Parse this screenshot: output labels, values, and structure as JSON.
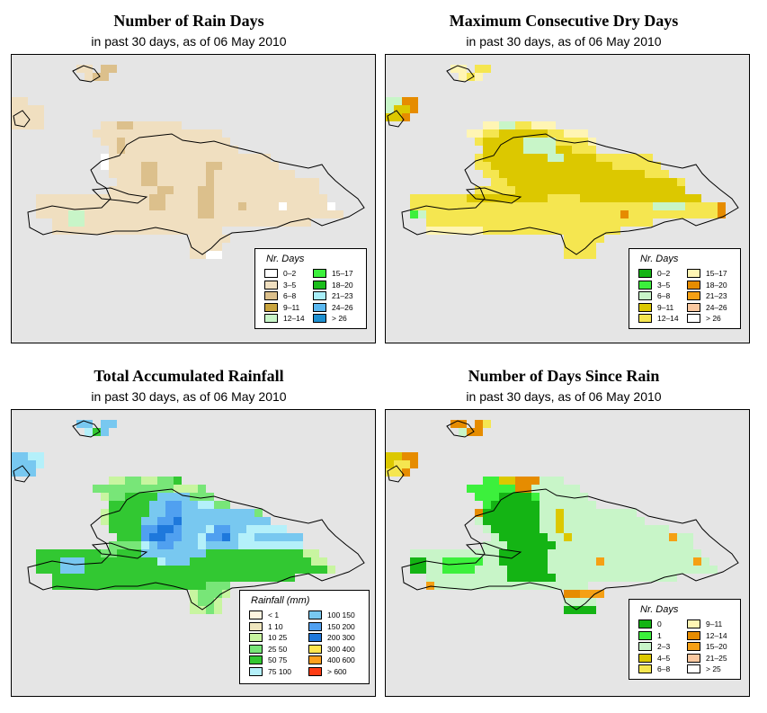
{
  "panels": [
    {
      "id": "rain-days",
      "title": "Number of Rain Days",
      "subtitle": "in past 30 days, as of  06 May 2010",
      "legend_title": "Nr. Days",
      "legend": [
        {
          "label": "0–2",
          "color": "#ffffff"
        },
        {
          "label": "3–5",
          "color": "#f0dfc0"
        },
        {
          "label": "6–8",
          "color": "#dcc08c"
        },
        {
          "label": "9–11",
          "color": "#c9a43e"
        },
        {
          "label": "12–14",
          "color": "#c8f5c8"
        },
        {
          "label": "15–17",
          "color": "#3cf03c"
        },
        {
          "label": "18–20",
          "color": "#1bbd1b"
        },
        {
          "label": "21–23",
          "color": "#a8eef8"
        },
        {
          "label": "24–26",
          "color": "#5ab8f0"
        },
        {
          "label": "> 26",
          "color": "#1e90d0"
        }
      ],
      "grid": [
        "..............................................",
        "........BB.CC.................................",
        ".........BCC..................................",
        "..............................................",
        "..............................................",
        "BB............................................",
        "BBBB..........................................",
        "BBBB..........................................",
        "BBBB.......BBCCBBBBBB........................",
        "..........BBBBBBBBBBBBBBBB....................",
        "...........BBCBBBBBBBBBBBBB...................",
        "............BCBBBBBBBBBBBBBB..................",
        "...........ABBBBBBBBBBBBBBBBBBBB..............",
        "...........ABBBBCCBBBBBBCCBBBBBBB.............",
        "............BBBBCCBBBBBBCBBBBBBBBBB...........",
        ".............BBBCCBBBBBBCBBBBBBBBBBBBB........",
        "............BBBBBBCCBBBCCBBBBBBBBBBBBB........",
        "...BBBBBBBBBBBBBBCCBBBBCCBBBBBBBBBBBBBB.......",
        "...BBBBBBBBBBBBBBCCBBBBCCBBBCBBBBABBBBBA......",
        "...BBBBEEBBBBBBBBBBBBBBCCBBBBBBBBBBBBBBBB.....",
        ".....BBEEBBBBBBBBBBBBBBBBBBBBBBBBBBBB.........",
        ".....BBBBBBBBBBBBBBBBBBBBB....................",
        "......................BBBBB...................",
        "......................BBBB....................",
        "......................BBAA....................",
        "..............................................",
        "..............................................",
        "..............................................",
        "..............................................",
        ".............................................."
      ]
    },
    {
      "id": "dry-days",
      "title": "Maximum Consecutive Dry Days",
      "subtitle": "in past 30 days, as of  06 May 2010",
      "legend_title": "Nr. Days",
      "legend": [
        {
          "label": "0–2",
          "color": "#14b414"
        },
        {
          "label": "3–5",
          "color": "#3cf03c"
        },
        {
          "label": "6–8",
          "color": "#c8f5c8"
        },
        {
          "label": "9–11",
          "color": "#dcc800"
        },
        {
          "label": "12–14",
          "color": "#f5e650"
        },
        {
          "label": "15–17",
          "color": "#fff5b4"
        },
        {
          "label": "18–20",
          "color": "#e68c00"
        },
        {
          "label": "21–23",
          "color": "#f5a014"
        },
        {
          "label": "24–26",
          "color": "#fac8a0"
        },
        {
          "label": "> 26",
          "color": "#ffffff"
        }
      ],
      "grid": [
        "..............................................",
        "........FF.EE.................................",
        ".........FEF..................................",
        "..............................................",
        "..............................................",
        "CCGG..........................................",
        "CDDG..........................................",
        "DDG...........................................",
        "............FFCCEEFFF........................",
        "..........FFEEDDDDDDEEFFF.....................",
        "...........EDDDDDCCCCEEEEF....................",
        "............DDDDDCCCCDDEEE....................",
        "...........EDDDDDDDDCCDDDDEEEEEEE.............",
        "...........EEDDDDDDDDDDDDDDDEEEEEE............",
        "............EEDDDDDDDDDDDDDDDDDDEEE...........",
        ".............EEDDDDDDDDDDDDDDDDDDDDDE.........",
        "...........EEEEEDDDDDDDDDDDDDDDDDDDDD.........",
        "...EEEEEEEDDDDDDDDDDEEEEDDDDDDDDDDDDDDD.......",
        "...EEEEEEEEEEEEEEEEEEEEEEEEEEEEEECCCCEEEEG....",
        "...BCEEEEEEEEEEEEEEEEEEEEEEEEGEEEEEEEEEEEG....",
        ".....EEEEEEEEEEEEEEEEEEEEEEEEEEEE..........",
        ".....FFFFFFFEEEEEEEEEEEEEEEEE................",
        "......................EEEEE...................",
        "......................EEEE....................",
        "......................EEEE....................",
        "..............................................",
        "..............................................",
        "..............................................",
        "..............................................",
        ".............................................."
      ]
    },
    {
      "id": "rainfall",
      "title": "Total Accumulated Rainfall",
      "subtitle": "in past 30 days, as of  06 May 2010",
      "legend_title": "Rainfall (mm)",
      "legend": [
        {
          "label": "< 1",
          "color": "#fff5e0"
        },
        {
          "label": "1    10",
          "color": "#f0e6be"
        },
        {
          "label": "10   25",
          "color": "#c8f5a0"
        },
        {
          "label": "25   50",
          "color": "#78e678"
        },
        {
          "label": "50   75",
          "color": "#32c832"
        },
        {
          "label": "75  100",
          "color": "#b4f0fa"
        },
        {
          "label": "100  150",
          "color": "#78c8f0"
        },
        {
          "label": "150  200",
          "color": "#50a0f0"
        },
        {
          "label": "200  300",
          "color": "#1e78dc"
        },
        {
          "label": "300  400",
          "color": "#ffe650"
        },
        {
          "label": "400  600",
          "color": "#ffa01e"
        },
        {
          "label": "> 600",
          "color": "#ff3c14"
        }
      ],
      "grid": [
        "..............................................",
        "........GG.GG.................................",
        ".........FEG...................................",
        "..............................................",
        "..............................................",
        "GGFF..........................................",
        "GGGF..........................................",
        "GGG...........................................",
        "............CCDDCCDDE........................",
        "..........DDDDDDDDDDCCCD.....................",
        "...........CDDEEEEGGGGDDD.....................",
        "............EEEEEGGHHGGFFDD...................",
        "...........CEEEEEGGHHGGGGGGGGGD...............",
        "...........CEEEEGGHHIGGGGGGGGGGG..............",
        "............EEEEHHIIHGGGFHHGGFFFFF............",
        ".............EEEHIIHHGGFHHIGFFGGGGGG..........",
        "............DDDDFGHHGGGFGGGGFFFFFFFF..........",
        "...EEEEEEEEDDEEEGGGGGGGGEEEEEEEEEEEECC........",
        "...EEEGGGEEEEEEEEEFGGGEEEEEEEEEEEEEEECC.......",
        "...EEEGGGEEEEEEEEEEEEEEEEEEEEEEEEEEEEEEC......",
        ".....EEEEEEEEEEEEEEEEEEEEEEEEEEEEEE...........",
        ".....EEEEEEEEEEEEEEEEEEEDDD...................",
        "......................CDDDC...................",
        "......................CDDC....................",
        "......................CCDC....................",
        "..............................................",
        "..............................................",
        "..............................................",
        "..............................................",
        ".............................................."
      ]
    },
    {
      "id": "since-rain",
      "title": "Number of Days Since Rain",
      "subtitle": "in past 30 days, as of  06 May 2010",
      "legend_title": "Nr. Days",
      "legend": [
        {
          "label": "0",
          "color": "#14b414"
        },
        {
          "label": "1",
          "color": "#3cf03c"
        },
        {
          "label": "2–3",
          "color": "#c8f5c8"
        },
        {
          "label": "4–5",
          "color": "#dcc800"
        },
        {
          "label": "6–8",
          "color": "#f5e650"
        },
        {
          "label": "9–11",
          "color": "#fff5b4"
        },
        {
          "label": "12–14",
          "color": "#e68c00"
        },
        {
          "label": "15–20",
          "color": "#f5a014"
        },
        {
          "label": "21–25",
          "color": "#fac8a0"
        },
        {
          "label": "> 25",
          "color": "#ffffff"
        }
      ],
      "grid": [
        "..............................................",
        "........GG.GE.................................",
        ".........CGG..................................",
        "..............................................",
        "..............................................",
        "DDGG..........................................",
        "DEEG..........................................",
        "EEG...........................................",
        "............BBDDGGGCCC........................",
        "..........BBBBBBGGCCCCCC......................",
        "...........BBBAAAABCCCCCC.....................",
        "............BAAAAAACCCCCCC....................",
        "...........GAAAAAAACCDCCCCCCCCC...............",
        "...........CAAAAAAACCDCCCCCCCCCC..............",
        "............CAAAAAACCDCCCCCCCCCCCCC...........",
        ".............CAAAAAACCDCCCCCCCCCCCCHCC........",
        "............CCCAAAAAACCCCCCCCCCCCCCCCC........",
        "...CCCCCCCCCCCAAAAAACCCCCCCCCCCCCCCCCCC.......",
        "...AACCBBBBBCCAAAAAACCCCCCHCCCCCCCCCCCHC......",
        "...AACCBBBBCCCCAAAAACCCCCCCCCCCCCCCCCCCCC.....",
        ".....CCCCCCCCCCAAAAAACCCCCCCCCCCCCCC.........",
        ".....HCCCCCCCCCCCCCCCCCCC.....................",
        "......................GGHHH...................",
        "......................CCCC....................",
        "......................AAAA....................",
        "..............................................",
        "..............................................",
        "..............................................",
        "..............................................",
        ".............................................."
      ]
    }
  ]
}
